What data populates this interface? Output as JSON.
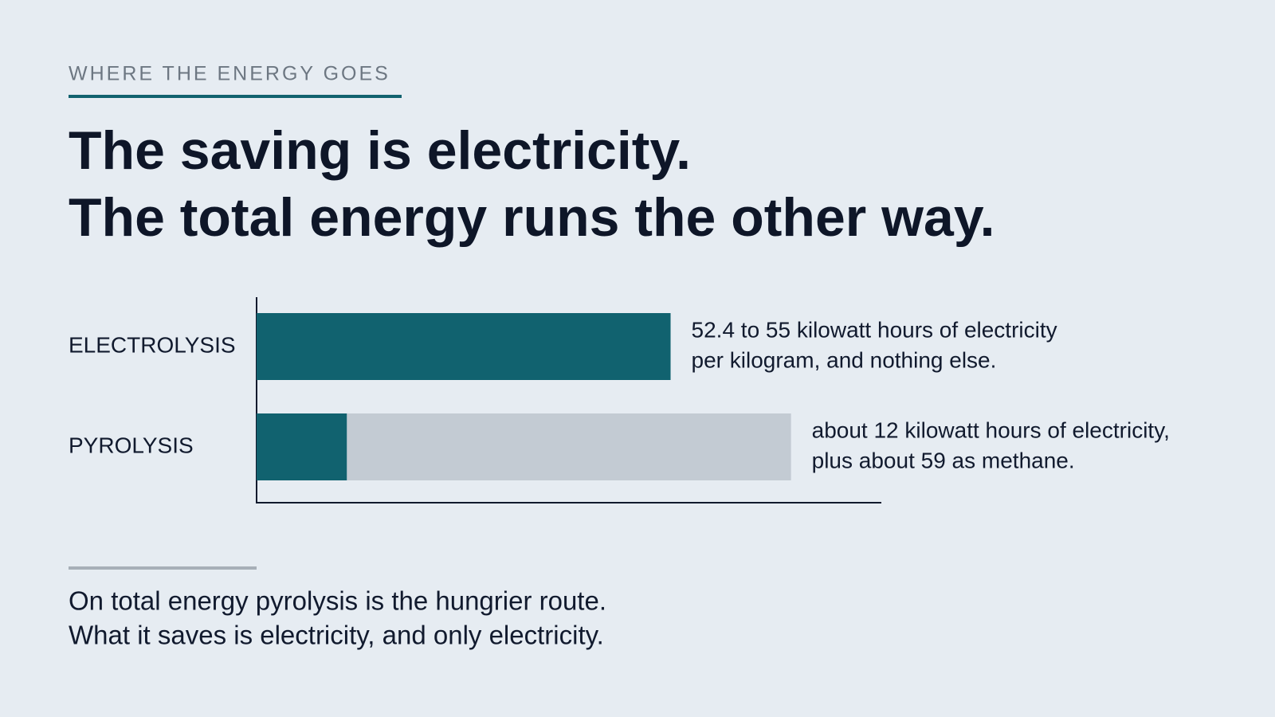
{
  "chart_data": {
    "type": "stacked-barh",
    "eyebrow": "WHERE THE ENERGY GOES",
    "title": [
      "The saving is electricity.",
      "The total energy runs the other way."
    ],
    "categories": [
      "ELECTROLYSIS",
      "PYROLYSIS"
    ],
    "series": [
      {
        "color": "#11626f",
        "values": [
          55,
          12
        ]
      },
      {
        "color": "#c3cbd3",
        "values": [
          null,
          59
        ]
      }
    ],
    "xlim": [
      0,
      83
    ],
    "annotations": [
      [
        "52.4 to 55 kilowatt hours of electricity",
        "per kilogram, and nothing else."
      ],
      [
        "about 12 kilowatt hours of electricity,",
        "plus about 59 as methane."
      ]
    ],
    "footnote": [
      "On total energy pyrolysis is the hungrier route.",
      "What it saves is electricity, and only electricity."
    ]
  }
}
